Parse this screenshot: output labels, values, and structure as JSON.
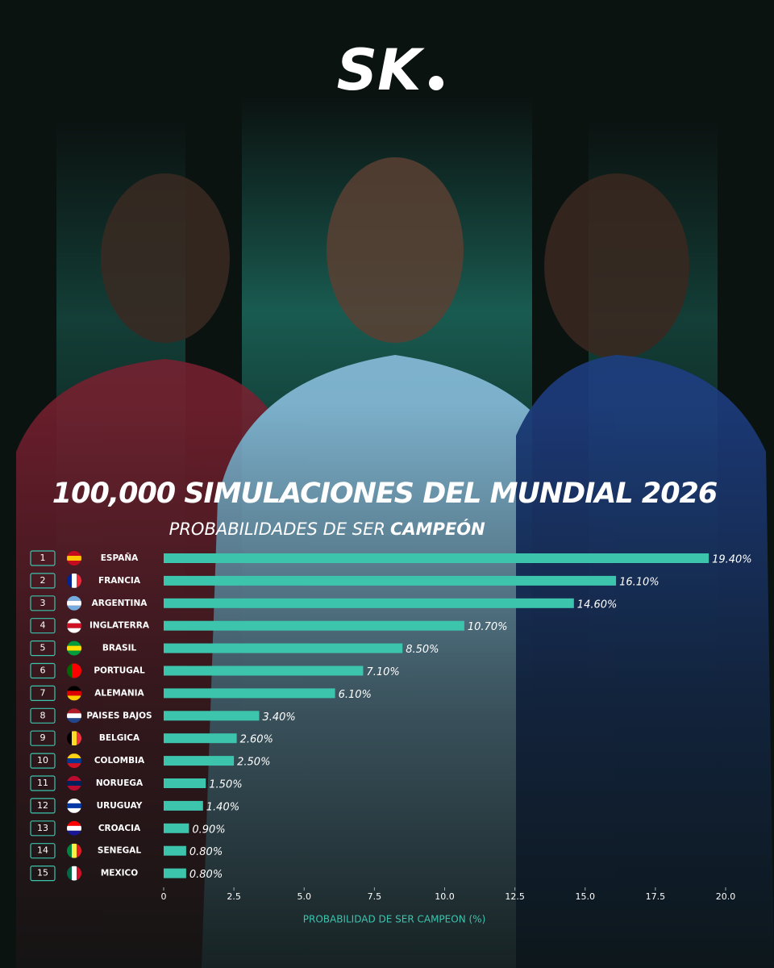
{
  "logo": "SK",
  "chart_data": {
    "type": "hbar",
    "title": "100,000 SIMULACIONES DEL MUNDIAL 2026",
    "subtitle": "PROBABILIDADES DE SER",
    "subtitle_emphasis": "CAMPEÓN",
    "xlabel": "PROBABILIDAD DE SER CAMPEON (%)",
    "ranks": [
      1,
      2,
      3,
      4,
      5,
      6,
      7,
      8,
      9,
      10,
      11,
      12,
      13,
      14,
      15
    ],
    "categories": [
      "ESPAÑA",
      "FRANCIA",
      "ARGENTINA",
      "INGLATERRA",
      "BRASIL",
      "PORTUGAL",
      "ALEMANIA",
      "PAISES BAJOS",
      "BELGICA",
      "COLOMBIA",
      "NORUEGA",
      "URUGUAY",
      "CROACIA",
      "SENEGAL",
      "MEXICO"
    ],
    "values": [
      19.4,
      16.1,
      14.6,
      10.7,
      8.5,
      7.1,
      6.1,
      3.4,
      2.6,
      2.5,
      1.5,
      1.4,
      0.9,
      0.8,
      0.8
    ],
    "value_labels": [
      "19.40%",
      "16.10%",
      "14.60%",
      "10.70%",
      "8.50%",
      "7.10%",
      "6.10%",
      "3.40%",
      "2.60%",
      "2.50%",
      "1.50%",
      "1.40%",
      "0.90%",
      "0.80%",
      "0.80%"
    ],
    "color": "#3cc4ad",
    "xlim": [
      0,
      20
    ],
    "xticks": [
      0,
      2.5,
      {
        "value": 5,
        "label": "5.0"
      },
      7.5,
      {
        "value": 10,
        "label": "10.0"
      },
      12.5,
      {
        "value": 15,
        "label": "15.0"
      },
      17.5,
      {
        "value": 20,
        "label": "20.0"
      }
    ]
  }
}
